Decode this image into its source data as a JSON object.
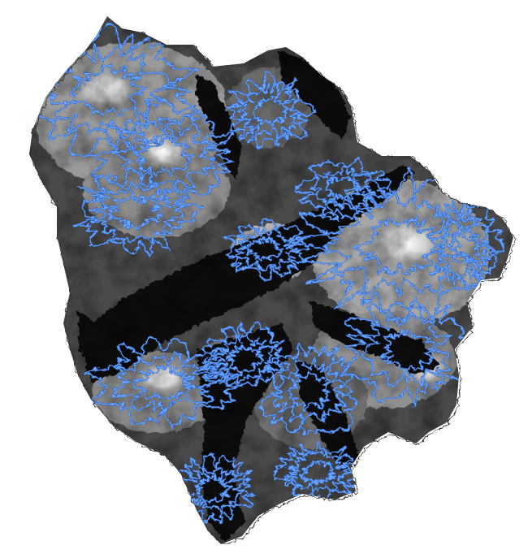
{
  "map": {
    "kind": "elevation-hillshade",
    "background_color": "#ffffff",
    "terrain_colors": {
      "low": "#000000",
      "mid": "#5a5a5a",
      "high": "#e6e6e6",
      "peak": "#ffffff"
    },
    "contour": {
      "color": "#6aa5ff",
      "outline_color": "#2f5fb8",
      "glow_color": "#a9cbff"
    },
    "boundary_color": "#222222",
    "text_labels": []
  }
}
